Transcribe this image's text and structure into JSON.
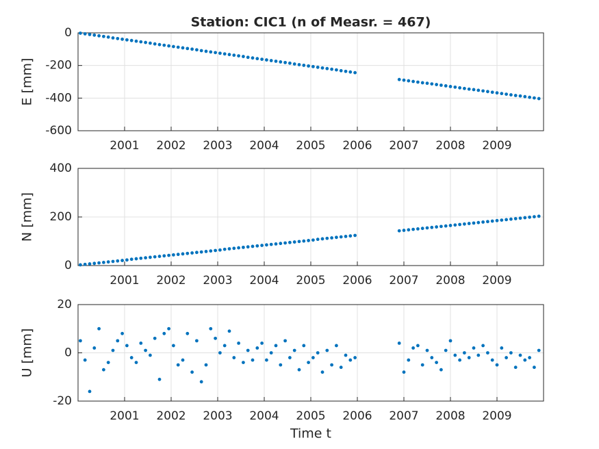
{
  "chart_data": [
    {
      "type": "scatter",
      "title": "Station: CIC1 (n of Measr. = 467)",
      "y_label": "E [mm]",
      "color": "#0072bd",
      "grid": true,
      "xlim": [
        2000,
        2010
      ],
      "xticks": [
        2001,
        2002,
        2003,
        2004,
        2005,
        2006,
        2007,
        2008,
        2009
      ],
      "ylim": [
        -600,
        0
      ],
      "yticks": [
        -600,
        -400,
        -200,
        0
      ],
      "x": [
        2000.05,
        2000.15,
        2000.25,
        2000.35,
        2000.45,
        2000.55,
        2000.65,
        2000.75,
        2000.85,
        2000.95,
        2001.05,
        2001.15,
        2001.25,
        2001.35,
        2001.45,
        2001.55,
        2001.65,
        2001.75,
        2001.85,
        2001.95,
        2002.05,
        2002.15,
        2002.25,
        2002.35,
        2002.45,
        2002.55,
        2002.65,
        2002.75,
        2002.85,
        2002.95,
        2003.05,
        2003.15,
        2003.25,
        2003.35,
        2003.45,
        2003.55,
        2003.65,
        2003.75,
        2003.85,
        2003.95,
        2004.05,
        2004.15,
        2004.25,
        2004.35,
        2004.45,
        2004.55,
        2004.65,
        2004.75,
        2004.85,
        2004.95,
        2005.05,
        2005.15,
        2005.25,
        2005.35,
        2005.45,
        2005.55,
        2005.65,
        2005.75,
        2005.85,
        2005.95,
        2006.9,
        2007,
        2007.1,
        2007.2,
        2007.3,
        2007.4,
        2007.5,
        2007.6,
        2007.7,
        2007.8,
        2007.9,
        2008,
        2008.1,
        2008.2,
        2008.3,
        2008.4,
        2008.5,
        2008.6,
        2008.7,
        2008.8,
        2008.9,
        2009,
        2009.1,
        2009.2,
        2009.3,
        2009.4,
        2009.5,
        2009.6,
        2009.7,
        2009.8,
        2009.9
      ],
      "values": [
        -2,
        -6,
        -10,
        -14,
        -18,
        -22,
        -26,
        -31,
        -35,
        -39,
        -43,
        -47,
        -51,
        -55,
        -59,
        -63,
        -68,
        -72,
        -76,
        -80,
        -84,
        -88,
        -92,
        -96,
        -100,
        -104,
        -109,
        -113,
        -117,
        -121,
        -125,
        -129,
        -133,
        -137,
        -141,
        -145,
        -150,
        -154,
        -158,
        -162,
        -166,
        -170,
        -174,
        -178,
        -182,
        -186,
        -191,
        -195,
        -199,
        -203,
        -207,
        -211,
        -215,
        -219,
        -223,
        -227,
        -232,
        -236,
        -240,
        -244,
        -286,
        -290,
        -294,
        -298,
        -302,
        -306,
        -309,
        -313,
        -317,
        -321,
        -325,
        -329,
        -333,
        -337,
        -341,
        -345,
        -348,
        -352,
        -356,
        -360,
        -364,
        -368,
        -372,
        -376,
        -380,
        -384,
        -387,
        -391,
        -395,
        -399,
        -403
      ]
    },
    {
      "type": "scatter",
      "y_label": "N [mm]",
      "color": "#0072bd",
      "grid": true,
      "xlim": [
        2000,
        2010
      ],
      "xticks": [
        2001,
        2002,
        2003,
        2004,
        2005,
        2006,
        2007,
        2008,
        2009
      ],
      "ylim": [
        0,
        400
      ],
      "yticks": [
        0,
        200,
        400
      ],
      "x": [
        2000.05,
        2000.15,
        2000.25,
        2000.35,
        2000.45,
        2000.55,
        2000.65,
        2000.75,
        2000.85,
        2000.95,
        2001.05,
        2001.15,
        2001.25,
        2001.35,
        2001.45,
        2001.55,
        2001.65,
        2001.75,
        2001.85,
        2001.95,
        2002.05,
        2002.15,
        2002.25,
        2002.35,
        2002.45,
        2002.55,
        2002.65,
        2002.75,
        2002.85,
        2002.95,
        2003.05,
        2003.15,
        2003.25,
        2003.35,
        2003.45,
        2003.55,
        2003.65,
        2003.75,
        2003.85,
        2003.95,
        2004.05,
        2004.15,
        2004.25,
        2004.35,
        2004.45,
        2004.55,
        2004.65,
        2004.75,
        2004.85,
        2004.95,
        2005.05,
        2005.15,
        2005.25,
        2005.35,
        2005.45,
        2005.55,
        2005.65,
        2005.75,
        2005.85,
        2005.95,
        2006.9,
        2007,
        2007.1,
        2007.2,
        2007.3,
        2007.4,
        2007.5,
        2007.6,
        2007.7,
        2007.8,
        2007.9,
        2008,
        2008.1,
        2008.2,
        2008.3,
        2008.4,
        2008.5,
        2008.6,
        2008.7,
        2008.8,
        2008.9,
        2009,
        2009.1,
        2009.2,
        2009.3,
        2009.4,
        2009.5,
        2009.6,
        2009.7,
        2009.8,
        2009.9
      ],
      "values": [
        3,
        5,
        7,
        9,
        11,
        13,
        15,
        17,
        19,
        21,
        23,
        26,
        28,
        30,
        32,
        34,
        36,
        38,
        40,
        42,
        44,
        46,
        48,
        50,
        52,
        54,
        56,
        58,
        60,
        62,
        64,
        67,
        69,
        71,
        73,
        75,
        77,
        79,
        81,
        83,
        85,
        87,
        89,
        91,
        93,
        95,
        97,
        99,
        101,
        103,
        105,
        108,
        110,
        112,
        114,
        116,
        118,
        120,
        122,
        124,
        143,
        145,
        147,
        149,
        151,
        153,
        155,
        157,
        159,
        161,
        163,
        165,
        167,
        169,
        171,
        173,
        175,
        177,
        179,
        181,
        183,
        185,
        187,
        189,
        191,
        193,
        195,
        197,
        199,
        201,
        203
      ]
    },
    {
      "type": "scatter",
      "y_label": "U [mm]",
      "x_label": "Time t",
      "color": "#0072bd",
      "grid": true,
      "xlim": [
        2000,
        2010
      ],
      "xticks": [
        2001,
        2002,
        2003,
        2004,
        2005,
        2006,
        2007,
        2008,
        2009
      ],
      "ylim": [
        -20,
        20
      ],
      "yticks": [
        -20,
        0,
        20
      ],
      "x": [
        2000.05,
        2000.15,
        2000.25,
        2000.35,
        2000.45,
        2000.55,
        2000.65,
        2000.75,
        2000.85,
        2000.95,
        2001.05,
        2001.15,
        2001.25,
        2001.35,
        2001.45,
        2001.55,
        2001.65,
        2001.75,
        2001.85,
        2001.95,
        2002.05,
        2002.15,
        2002.25,
        2002.35,
        2002.45,
        2002.55,
        2002.65,
        2002.75,
        2002.85,
        2002.95,
        2003.05,
        2003.15,
        2003.25,
        2003.35,
        2003.45,
        2003.55,
        2003.65,
        2003.75,
        2003.85,
        2003.95,
        2004.05,
        2004.15,
        2004.25,
        2004.35,
        2004.45,
        2004.55,
        2004.65,
        2004.75,
        2004.85,
        2004.95,
        2005.05,
        2005.15,
        2005.25,
        2005.35,
        2005.45,
        2005.55,
        2005.65,
        2005.75,
        2005.85,
        2005.95,
        2006.9,
        2007,
        2007.1,
        2007.2,
        2007.3,
        2007.4,
        2007.5,
        2007.6,
        2007.7,
        2007.8,
        2007.9,
        2008,
        2008.1,
        2008.2,
        2008.3,
        2008.4,
        2008.5,
        2008.6,
        2008.7,
        2008.8,
        2008.9,
        2009,
        2009.1,
        2009.2,
        2009.3,
        2009.4,
        2009.5,
        2009.6,
        2009.7,
        2009.8,
        2009.9
      ],
      "values": [
        5,
        -3,
        -16,
        2,
        10,
        -7,
        -4,
        1,
        5,
        8,
        3,
        -2,
        -4,
        4,
        1,
        -1,
        6,
        -11,
        8,
        10,
        3,
        -5,
        -3,
        8,
        -8,
        5,
        -12,
        -5,
        10,
        6,
        0,
        3,
        9,
        -2,
        4,
        -4,
        1,
        -3,
        2,
        4,
        -3,
        0,
        3,
        -5,
        5,
        -2,
        1,
        -7,
        3,
        -4,
        -2,
        0,
        -8,
        1,
        -5,
        3,
        -6,
        -1,
        -3,
        -2,
        4,
        -8,
        -3,
        2,
        3,
        -5,
        1,
        -2,
        -4,
        -7,
        1,
        5,
        -1,
        -3,
        0,
        -2,
        2,
        -1,
        3,
        0,
        -3,
        -5,
        2,
        -2,
        0,
        -6,
        -1,
        -3,
        -2,
        -6,
        1
      ]
    }
  ]
}
